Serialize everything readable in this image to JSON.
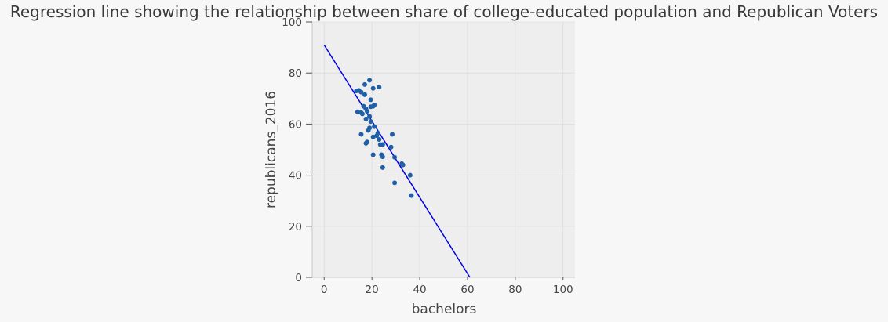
{
  "chart_data": {
    "type": "scatter",
    "title": "Regression line showing the relationship between share of college-educated population and Republican Voters",
    "xlabel": "bachelors",
    "ylabel": "republicans_2016",
    "xlim": [
      -5,
      105
    ],
    "ylim": [
      0,
      100
    ],
    "xticks": [
      0,
      20,
      40,
      60,
      80,
      100
    ],
    "yticks": [
      0,
      20,
      40,
      60,
      80,
      100
    ],
    "grid": true,
    "colors": {
      "points": "#1f5fa8",
      "line": "#0000e0",
      "plot_background": "#eeeeee",
      "page_background": "#f7f7f7"
    },
    "series": [
      {
        "kind": "points",
        "x": [
          19.0,
          23.0,
          17.0,
          13.5,
          14.5,
          15.5,
          17.0,
          20.5,
          19.5,
          21.0,
          20.5,
          19.5,
          17.5,
          16.5,
          14.0,
          15.5,
          16.0,
          18.0,
          19.0,
          17.5,
          19.5,
          21.0,
          19.0,
          18.5,
          22.5,
          22.0,
          20.5,
          23.0,
          28.5,
          15.5,
          23.5,
          24.5,
          18.0,
          17.5,
          28.0,
          20.5,
          24.0,
          24.5,
          29.5,
          32.5,
          33.0,
          24.5,
          36.0,
          29.5,
          36.5
        ],
        "y": [
          77.2,
          74.5,
          75.5,
          73.0,
          73.2,
          72.5,
          71.5,
          74.0,
          69.5,
          67.5,
          67.0,
          66.8,
          66.0,
          67.0,
          64.8,
          64.5,
          64.0,
          65.0,
          63.0,
          62.0,
          61.0,
          59.0,
          58.5,
          57.5,
          56.5,
          55.5,
          55.0,
          54.0,
          56.0,
          56.0,
          52.0,
          52.0,
          53.0,
          52.5,
          51.0,
          48.0,
          48.0,
          47.2,
          47.0,
          44.5,
          44.0,
          43.0,
          40.0,
          37.0,
          32.0
        ]
      },
      {
        "kind": "regression-line",
        "x": [
          0,
          61
        ],
        "y": [
          91,
          0
        ]
      }
    ]
  }
}
